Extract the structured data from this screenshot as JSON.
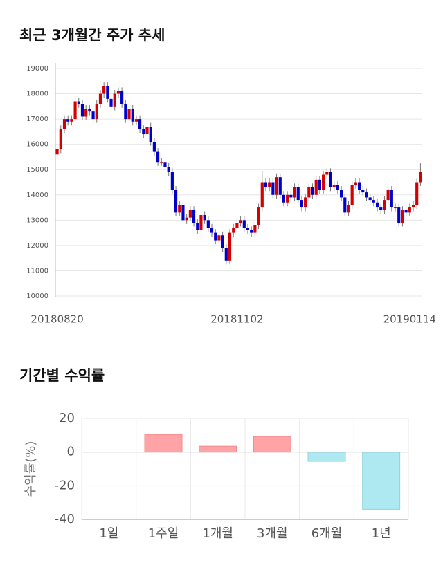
{
  "chart_data": [
    {
      "type": "candlestick",
      "title": "최근 3개월간 주가 추세",
      "categories": [
        "20180820",
        null,
        null,
        null,
        null,
        null,
        null,
        null,
        null,
        null,
        null,
        null,
        null,
        null,
        null,
        null,
        null,
        null,
        null,
        null,
        null,
        null,
        null,
        null,
        null,
        null,
        null,
        null,
        null,
        null,
        null,
        null,
        null,
        null,
        null,
        null,
        null,
        null,
        null,
        null,
        null,
        null,
        null,
        null,
        null,
        null,
        null,
        null,
        null,
        null,
        "20181102",
        null,
        null,
        null,
        null,
        null,
        null,
        null,
        null,
        null,
        null,
        null,
        null,
        null,
        null,
        null,
        null,
        null,
        null,
        null,
        null,
        null,
        null,
        null,
        null,
        null,
        null,
        null,
        null,
        null,
        null,
        null,
        null,
        null,
        null,
        null,
        null,
        null,
        null,
        null,
        null,
        null,
        null,
        null,
        null,
        null,
        null,
        null,
        "20190114",
        null,
        null,
        null
      ],
      "open": [
        15600,
        15800,
        16600,
        17000,
        16900,
        17000,
        17700,
        17600,
        17100,
        17400,
        17300,
        17000,
        17600,
        18000,
        18300,
        17800,
        17500,
        18000,
        18100,
        17600,
        17000,
        17400,
        16900,
        17000,
        16600,
        16400,
        16700,
        16100,
        15700,
        15300,
        15300,
        15100,
        14900,
        14200,
        13300,
        13600,
        13000,
        13100,
        13400,
        12900,
        12600,
        13200,
        13000,
        12700,
        12500,
        12200,
        12400,
        11900,
        11400,
        12500,
        12700,
        12900,
        13000,
        12700,
        12600,
        12500,
        12800,
        13500,
        14500,
        14300,
        14500,
        14000,
        14700,
        14000,
        13700,
        14000,
        13900,
        14300,
        13800,
        13500,
        13900,
        14300,
        14000,
        14600,
        14200,
        14800,
        14900,
        14300,
        14400,
        14200,
        13900,
        13300,
        13600,
        14400,
        14500,
        14200,
        14100,
        13900,
        13800,
        13700,
        13500,
        13400,
        13800,
        14200,
        13500,
        13500,
        12900,
        13400,
        13300,
        13500,
        13600,
        14500
      ],
      "high": [
        15950,
        16750,
        17150,
        17150,
        17150,
        17850,
        17850,
        17750,
        17550,
        17550,
        17450,
        17750,
        18150,
        18450,
        18450,
        17950,
        18150,
        18250,
        18250,
        17750,
        17550,
        17550,
        17150,
        17150,
        16750,
        16850,
        16850,
        16250,
        15850,
        15450,
        15450,
        15250,
        15050,
        14350,
        13750,
        13750,
        13250,
        13550,
        13550,
        13050,
        13350,
        13350,
        13150,
        12850,
        12650,
        12550,
        12550,
        12050,
        12650,
        12850,
        13050,
        13150,
        13150,
        12850,
        12750,
        12950,
        13650,
        14950,
        14650,
        14650,
        14650,
        14850,
        14850,
        14150,
        14150,
        14150,
        14450,
        14450,
        13950,
        14050,
        14450,
        14450,
        14750,
        14750,
        14950,
        15050,
        15050,
        14550,
        14550,
        14350,
        14050,
        13750,
        14550,
        14650,
        14650,
        14350,
        14250,
        14050,
        13950,
        13850,
        13650,
        13950,
        14350,
        14350,
        13650,
        13650,
        13550,
        13550,
        13650,
        13750,
        14650,
        15250
      ],
      "low": [
        15450,
        15650,
        16450,
        16750,
        16750,
        16850,
        17450,
        16950,
        16950,
        17150,
        16850,
        16850,
        17450,
        17850,
        17650,
        17350,
        17350,
        17850,
        17450,
        16850,
        16850,
        16750,
        16750,
        16450,
        16250,
        16250,
        15950,
        15550,
        15150,
        15150,
        14950,
        14750,
        14050,
        13150,
        13150,
        12850,
        12850,
        12950,
        12750,
        12450,
        12450,
        12850,
        12550,
        12350,
        12050,
        12050,
        11750,
        11250,
        11250,
        12350,
        12550,
        12750,
        12550,
        12450,
        12350,
        12350,
        12650,
        13350,
        14150,
        14150,
        13850,
        13850,
        13850,
        13550,
        13550,
        13750,
        13750,
        13650,
        13350,
        13350,
        13750,
        13850,
        13850,
        14050,
        14050,
        14650,
        14150,
        14150,
        14050,
        13750,
        13150,
        13150,
        13450,
        14250,
        14050,
        13950,
        13750,
        13650,
        13550,
        13350,
        13250,
        13250,
        13650,
        13350,
        13350,
        12750,
        12750,
        13150,
        13150,
        13350,
        13450,
        14350
      ],
      "close": [
        15800,
        16600,
        17000,
        16900,
        17000,
        17700,
        17600,
        17100,
        17400,
        17300,
        17000,
        17600,
        18000,
        18300,
        17800,
        17500,
        18000,
        18100,
        17600,
        17000,
        17400,
        16900,
        17000,
        16600,
        16400,
        16700,
        16100,
        15700,
        15300,
        15300,
        15100,
        14900,
        14200,
        13300,
        13600,
        13000,
        13100,
        13400,
        12900,
        12600,
        13200,
        13000,
        12700,
        12500,
        12200,
        12400,
        11900,
        11400,
        12500,
        12700,
        12900,
        13000,
        12700,
        12600,
        12500,
        12800,
        13500,
        14500,
        14300,
        14500,
        14000,
        14700,
        14000,
        13700,
        14000,
        13900,
        14300,
        13800,
        13500,
        13900,
        14300,
        14000,
        14600,
        14200,
        14800,
        14900,
        14300,
        14400,
        14200,
        13900,
        13300,
        13600,
        14400,
        14500,
        14200,
        14100,
        13900,
        13800,
        13700,
        13500,
        13400,
        13800,
        14200,
        13500,
        13500,
        12900,
        13400,
        13300,
        13500,
        13600,
        14500,
        14900
      ],
      "ylim": [
        10000,
        19000
      ],
      "yticks": [
        10000,
        11000,
        12000,
        13000,
        14000,
        15000,
        16000,
        17000,
        18000,
        19000
      ],
      "up_color": "#d40000",
      "down_color": "#0000cc",
      "grid": true
    },
    {
      "type": "bar",
      "title": "기간별 수익률",
      "y_label": "수익률(%)",
      "categories": [
        "1일",
        "1주일",
        "1개월",
        "3개월",
        "6개월",
        "1년"
      ],
      "values": [
        0,
        10.5,
        3.5,
        9.3,
        -5.5,
        -34
      ],
      "ylim": [
        -40,
        20
      ],
      "yticks": [
        -40,
        -20,
        0,
        20
      ],
      "positive_color": "#ffa3a6",
      "negative_color": "#aee9f2",
      "grid": true
    }
  ]
}
